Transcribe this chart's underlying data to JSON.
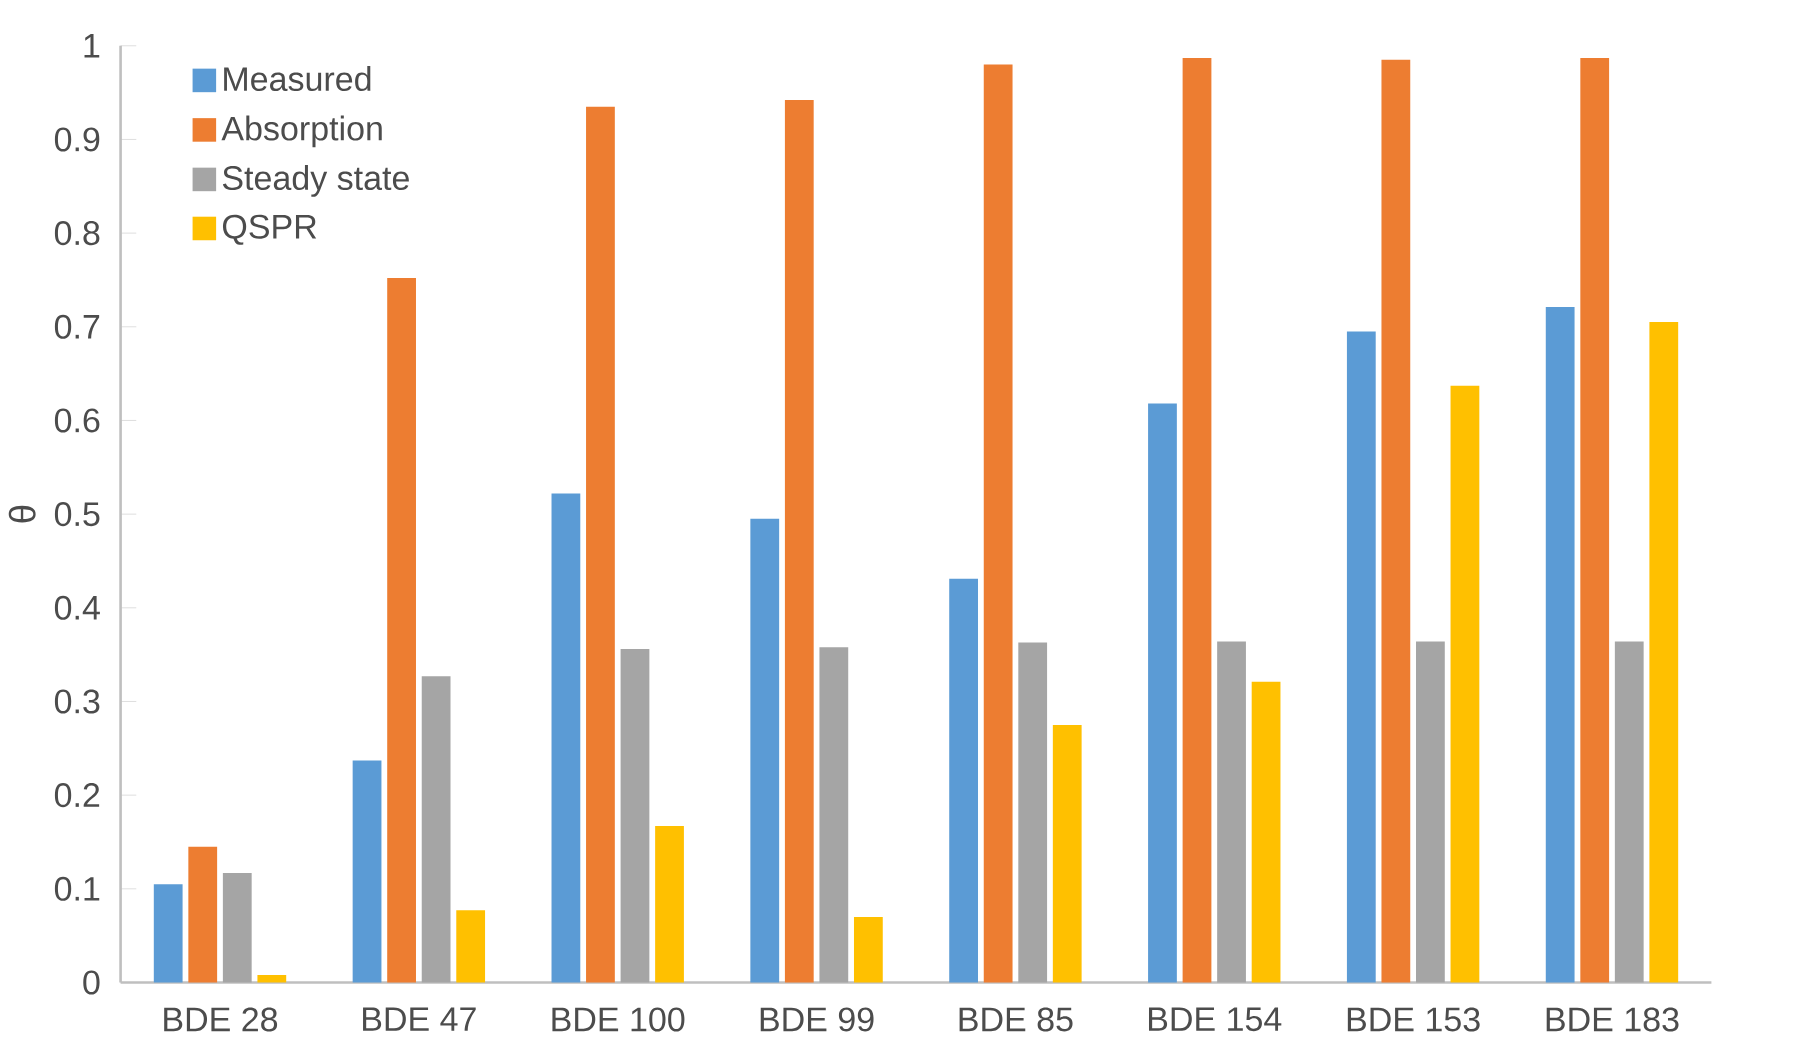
{
  "chart_data": {
    "type": "bar",
    "ylabel": "θ",
    "categories": [
      "BDE 28",
      "BDE 47",
      "BDE 100",
      "BDE 99",
      "BDE 85",
      "BDE 154",
      "BDE 153",
      "BDE 183"
    ],
    "series": [
      {
        "name": "Measured",
        "color": "#5b9bd5",
        "values": [
          0.105,
          0.237,
          0.522,
          0.495,
          0.431,
          0.618,
          0.695,
          0.721
        ]
      },
      {
        "name": "Absorption",
        "color": "#ed7d31",
        "values": [
          0.145,
          0.752,
          0.935,
          0.942,
          0.98,
          0.987,
          0.985,
          0.987
        ]
      },
      {
        "name": "Steady state",
        "color": "#a5a5a5",
        "values": [
          0.117,
          0.327,
          0.356,
          0.358,
          0.363,
          0.364,
          0.364,
          0.364
        ]
      },
      {
        "name": "QSPR",
        "color": "#ffc000",
        "values": [
          0.008,
          0.077,
          0.167,
          0.07,
          0.275,
          0.321,
          0.637,
          0.705
        ]
      }
    ],
    "ylim": [
      0,
      1
    ],
    "yticks": [
      0,
      0.1,
      0.2,
      0.3,
      0.4,
      0.5,
      0.6,
      0.7,
      0.8,
      0.9,
      1
    ],
    "grid": false,
    "legend": "top left"
  }
}
